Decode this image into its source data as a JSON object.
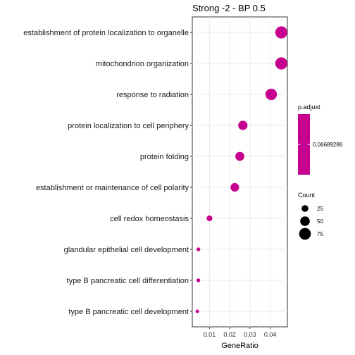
{
  "chart_data": {
    "type": "scatter",
    "title": "Strong -2 - BP 0.5",
    "xlabel": "GeneRatio",
    "ylabel": "",
    "xlim": [
      0.0015,
      0.0485
    ],
    "x_ticks": [
      0.01,
      0.02,
      0.03,
      0.04
    ],
    "x_tick_labels": [
      "0.01",
      "0.02",
      "0.03",
      "0.04"
    ],
    "grid": true,
    "point_color": "#c7008f",
    "categories": [
      "establishment of protein localization to organelle",
      "mitochondrion organization",
      "response to radiation",
      "protein localization to cell periphery",
      "protein folding",
      "establishment or maintenance of cell polarity",
      "cell redox homeostasis",
      "glandular epithelial cell development",
      "type B pancreatic cell differentiation",
      "type B pancreatic cell development"
    ],
    "points": [
      {
        "category": "establishment of protein localization to organelle",
        "gene_ratio": 0.0455,
        "count": 80
      },
      {
        "category": "mitochondrion organization",
        "gene_ratio": 0.0455,
        "count": 80
      },
      {
        "category": "response to radiation",
        "gene_ratio": 0.0405,
        "count": 72
      },
      {
        "category": "protein localization to cell periphery",
        "gene_ratio": 0.0265,
        "count": 47
      },
      {
        "category": "protein folding",
        "gene_ratio": 0.025,
        "count": 44
      },
      {
        "category": "establishment or maintenance of cell polarity",
        "gene_ratio": 0.0225,
        "count": 40
      },
      {
        "category": "cell redox homeostasis",
        "gene_ratio": 0.01,
        "count": 18
      },
      {
        "category": "glandular epithelial cell development",
        "gene_ratio": 0.0045,
        "count": 8
      },
      {
        "category": "type B pancreatic cell differentiation",
        "gene_ratio": 0.0045,
        "count": 8
      },
      {
        "category": "type B pancreatic cell development",
        "gene_ratio": 0.004,
        "count": 7
      }
    ],
    "legend_placement": "right",
    "color_legend": {
      "title": "p.adjust",
      "value_label": "0.06689286",
      "color": "#c7008f"
    },
    "size_legend": {
      "title": "Count",
      "values": [
        25,
        50,
        75
      ],
      "labels": [
        "25",
        "50",
        "75"
      ]
    }
  }
}
